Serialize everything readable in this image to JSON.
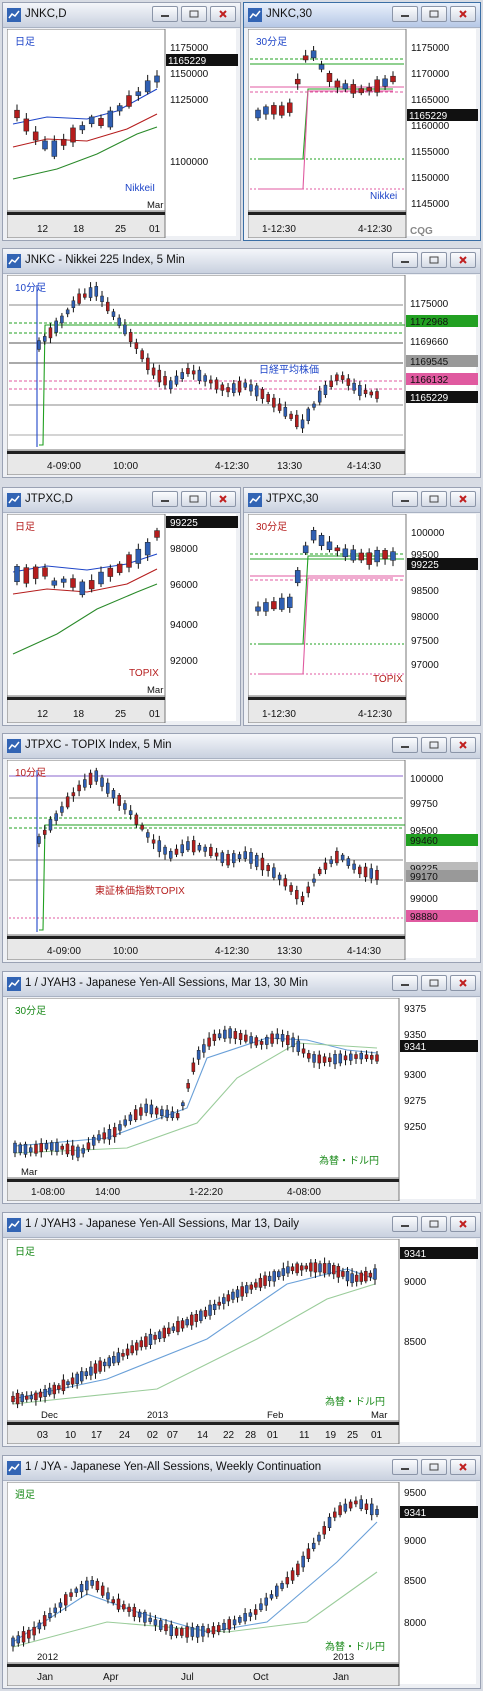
{
  "windows": [
    {
      "id": "w1",
      "title": "JNKC,D",
      "period": "日足",
      "watermark": "NikkeiI",
      "yticks": [
        "1175000",
        "1150000",
        "1125000",
        "1100000"
      ],
      "price_tag": "1165229",
      "xlabels": [
        "12",
        "18",
        "25",
        "01"
      ],
      "xsub": "Mar"
    },
    {
      "id": "w2",
      "title": "JNKC,30",
      "period": "30分足",
      "watermark": "Nikkei",
      "yticks": [
        "1175000",
        "1170000",
        "1165000",
        "1160000",
        "1155000",
        "1150000",
        "1145000"
      ],
      "price_tag": "1165229",
      "xlabels": [
        "1-12:30",
        "4-12:30"
      ],
      "logo": "CQG"
    },
    {
      "id": "w3",
      "title": "JNKC - Nikkei 225 Index, 5 Min",
      "period": "10分足",
      "watermark": "日経平均株価",
      "yticks": [
        "1175000",
        "1172968",
        "1169660",
        "1169545",
        "1166132",
        "1165229"
      ],
      "xlabels": [
        "4-09:00",
        "10:00",
        "4-12:30",
        "13:30",
        "4-14:30"
      ]
    },
    {
      "id": "w4",
      "title": "JTPXC,D",
      "period": "日足",
      "watermark": "TOPIX",
      "yticks": [
        "99225",
        "98000",
        "96000",
        "94000",
        "92000"
      ],
      "xlabels": [
        "12",
        "18",
        "25",
        "01"
      ],
      "xsub": "Mar"
    },
    {
      "id": "w5",
      "title": "JTPXC,30",
      "period": "30分足",
      "watermark": "TOPIX",
      "yticks": [
        "100000",
        "99500",
        "99225",
        "98500",
        "98000",
        "97500",
        "97000"
      ],
      "xlabels": [
        "1-12:30",
        "4-12:30"
      ]
    },
    {
      "id": "w6",
      "title": "JTPXC - TOPIX Index, 5 Min",
      "period": "10分足",
      "watermark": "東証株価指数TOPIX",
      "yticks": [
        "100000",
        "99750",
        "99500",
        "99460",
        "99225",
        "99170",
        "99000",
        "98880"
      ],
      "xlabels": [
        "4-09:00",
        "10:00",
        "4-12:30",
        "13:30",
        "4-14:30"
      ]
    },
    {
      "id": "w7",
      "title": "1 / JYAH3 - Japanese Yen-All Sessions, Mar 13, 30 Min",
      "period": "30分足",
      "watermark": "為替・ドル円",
      "yticks": [
        "9375",
        "9350",
        "9341",
        "9300",
        "9275",
        "9250"
      ],
      "xlabels": [
        "1-08:00",
        "14:00",
        "1-22:20",
        "4-08:00"
      ],
      "xsub": "Mar"
    },
    {
      "id": "w8",
      "title": "1 / JYAH3 - Japanese Yen-All Sessions, Mar 13, Daily",
      "period": "日足",
      "watermark": "為替・ドル円",
      "yticks": [
        "9341",
        "9000",
        "8500"
      ],
      "xlabels": [
        "03",
        "10",
        "17",
        "24",
        "02",
        "07",
        "14",
        "22",
        "28",
        "01",
        "11",
        "19",
        "25",
        "01"
      ],
      "xsubs": [
        "Dec",
        "2013",
        "Feb",
        "Mar"
      ]
    },
    {
      "id": "w9",
      "title": "1 / JYA - Japanese Yen-All Sessions, Weekly Continuation",
      "period": "週足",
      "watermark": "為替・ドル円",
      "yticks": [
        "9500",
        "9341",
        "9000",
        "8500",
        "8000"
      ],
      "xlabels": [
        "Jan",
        "Apr",
        "Jul",
        "Oct",
        "Jan"
      ],
      "xsubs": [
        "2012",
        "2013"
      ]
    }
  ],
  "colors": {
    "up": "#2f5fb3",
    "down": "#b51d1d",
    "green": "#22a022",
    "pink": "#e05aa0",
    "blue": "#1e45c8"
  },
  "icons": {
    "title_icon": "chart-window-icon",
    "minimize": "minimize-icon",
    "restore": "restore-icon",
    "close": "close-icon"
  }
}
